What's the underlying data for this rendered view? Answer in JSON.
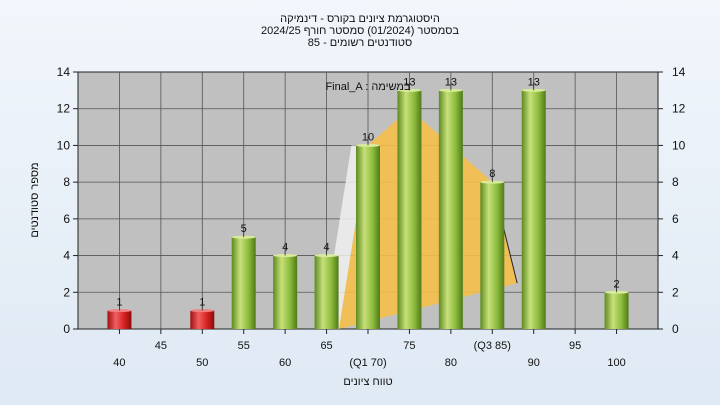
{
  "chart_data": {
    "type": "bar",
    "title_lines": [
      "היסטוגרמת ציונים בקורס - דינמיקה",
      "בסמסטר  (01/2024)  סמסטר חורף 2024/25",
      "סטודנטים רשומים - 85"
    ],
    "ylabel": "מספר סטודנטים",
    "xlabel": "טווח ציונים",
    "ylim": [
      0,
      14
    ],
    "yticks": [
      0,
      2,
      4,
      6,
      8,
      10,
      12,
      14
    ],
    "xticks": [
      {
        "x": 40,
        "label": "40",
        "row": 2
      },
      {
        "x": 45,
        "label": "45",
        "row": 1
      },
      {
        "x": 50,
        "label": "50",
        "row": 2
      },
      {
        "x": 55,
        "label": "55",
        "row": 1
      },
      {
        "x": 60,
        "label": "60",
        "row": 2
      },
      {
        "x": 65,
        "label": "65",
        "row": 1
      },
      {
        "x": 70,
        "label": "(Q1 70)",
        "row": 2
      },
      {
        "x": 75,
        "label": "75",
        "row": 1
      },
      {
        "x": 80,
        "label": "80",
        "row": 2
      },
      {
        "x": 85,
        "label": "(Q3 85)",
        "row": 1
      },
      {
        "x": 90,
        "label": "90",
        "row": 2
      },
      {
        "x": 95,
        "label": "95",
        "row": 1
      },
      {
        "x": 100,
        "label": "100",
        "row": 2
      }
    ],
    "bars": [
      {
        "x": 40,
        "value": 1,
        "color": "red"
      },
      {
        "x": 50,
        "value": 1,
        "color": "red"
      },
      {
        "x": 55,
        "value": 5,
        "color": "green"
      },
      {
        "x": 60,
        "value": 4,
        "color": "green"
      },
      {
        "x": 65,
        "value": 4,
        "color": "green"
      },
      {
        "x": 70,
        "value": 10,
        "color": "green"
      },
      {
        "x": 75,
        "value": 13,
        "color": "green"
      },
      {
        "x": 80,
        "value": 13,
        "color": "green"
      },
      {
        "x": 85,
        "value": 8,
        "color": "green"
      },
      {
        "x": 90,
        "value": 13,
        "color": "green"
      },
      {
        "x": 100,
        "value": 2,
        "color": "green"
      }
    ],
    "distribution_curve": [
      [
        66.5,
        0
      ],
      [
        70,
        10
      ],
      [
        75,
        12
      ],
      [
        80,
        10
      ],
      [
        85,
        8
      ],
      [
        88,
        2.5
      ]
    ],
    "white_band": [
      [
        64.5,
        0
      ],
      [
        66.5,
        0
      ],
      [
        70,
        10
      ],
      [
        68,
        10
      ]
    ],
    "legend": "Final_A : במשימה",
    "colors": {
      "red": "#d62020",
      "green": "#8cbb3c",
      "curve": "#f5c04a",
      "plot_bg": "#c0c0c0"
    }
  }
}
